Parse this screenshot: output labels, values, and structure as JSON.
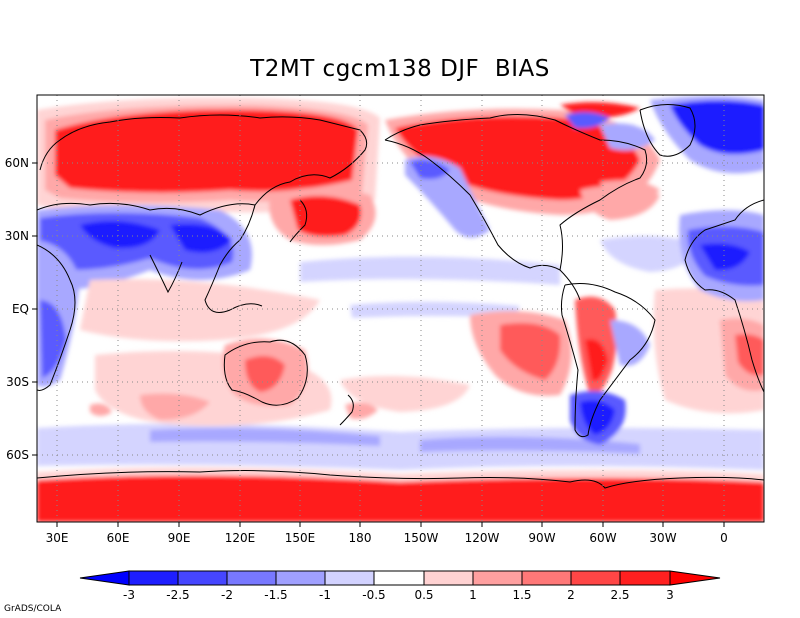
{
  "title": "T2MT cgcm138 DJF  BIAS",
  "credit": "GrADS/COLA",
  "lat_labels": [
    "60N",
    "30N",
    "EQ",
    "30S",
    "60S"
  ],
  "lon_labels": [
    "30E",
    "60E",
    "90E",
    "120E",
    "150E",
    "180",
    "150W",
    "120W",
    "90W",
    "60W",
    "30W",
    "0"
  ],
  "colorbar": {
    "tick_labels": [
      "-3",
      "-2.5",
      "-2",
      "-1.5",
      "-1",
      "-0.5",
      "0.5",
      "1",
      "1.5",
      "2",
      "2.5",
      "3"
    ],
    "colors": [
      "#1e1eff",
      "#4646ff",
      "#7878ff",
      "#a0a0ff",
      "#d2d2ff",
      "#ffffff",
      "#ffd2d2",
      "#ffa0a0",
      "#ff7878",
      "#ff4646",
      "#ff2020"
    ],
    "under_color": "#0000ff",
    "over_color": "#ff0000"
  },
  "palette": {
    "strong_red": "#ff1a1a",
    "red": "#ff5a5a",
    "light_red": "#ffa8a8",
    "pale_red": "#ffd4d4",
    "pale_blue": "#d4d4ff",
    "light_blue": "#a8a8ff",
    "blue": "#5a5aff",
    "strong_blue": "#1a1aff"
  }
}
